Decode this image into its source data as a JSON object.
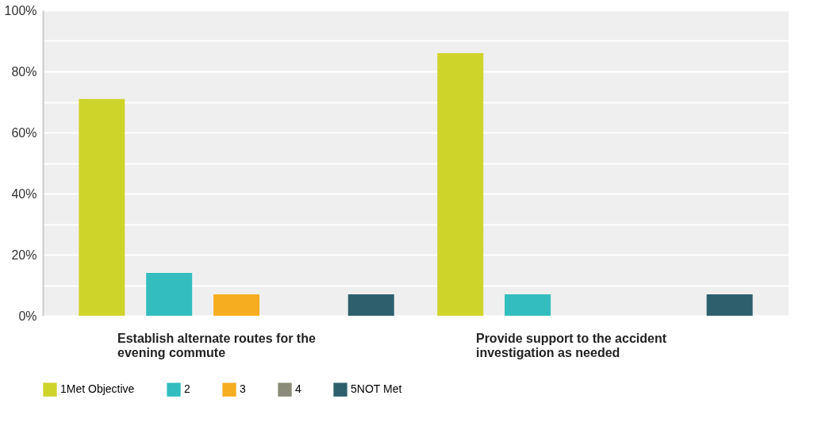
{
  "chart_data": {
    "type": "bar",
    "categories": [
      "Establish alternate routes for the evening commute",
      "Provide support to the accident investigation as needed"
    ],
    "series": [
      {
        "name": "1Met Objective",
        "color": "#cfd42a",
        "values": [
          71,
          86
        ]
      },
      {
        "name": "2",
        "color": "#33bdbf",
        "values": [
          14,
          7
        ]
      },
      {
        "name": "3",
        "color": "#f6ae20",
        "values": [
          7,
          0
        ]
      },
      {
        "name": "4",
        "color": "#8a8b78",
        "values": [
          0,
          0
        ]
      },
      {
        "name": "5NOT Met",
        "color": "#2e5f6c",
        "values": [
          7,
          7
        ]
      }
    ],
    "ylim": [
      0,
      100
    ],
    "yticks": [
      {
        "value": 0,
        "label": "0%"
      },
      {
        "value": 10,
        "label": null
      },
      {
        "value": 20,
        "label": "20%"
      },
      {
        "value": 30,
        "label": null
      },
      {
        "value": 40,
        "label": "40%"
      },
      {
        "value": 50,
        "label": null
      },
      {
        "value": 60,
        "label": "60%"
      },
      {
        "value": 70,
        "label": null
      },
      {
        "value": 80,
        "label": "80%"
      },
      {
        "value": 90,
        "label": null
      },
      {
        "value": 100,
        "label": "100%"
      }
    ],
    "grid": "y",
    "legend": "bottom"
  }
}
